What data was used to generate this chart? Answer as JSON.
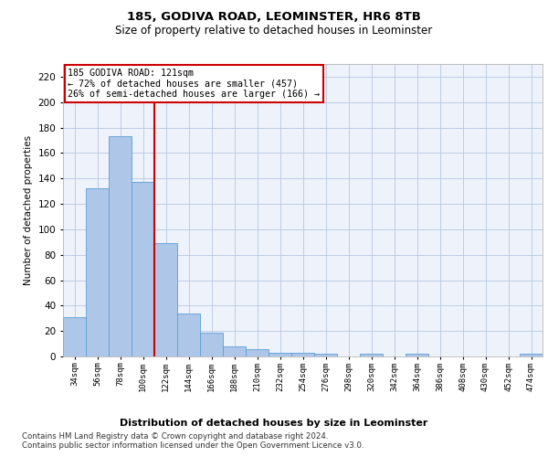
{
  "title1": "185, GODIVA ROAD, LEOMINSTER, HR6 8TB",
  "title2": "Size of property relative to detached houses in Leominster",
  "xlabel": "Distribution of detached houses by size in Leominster",
  "ylabel": "Number of detached properties",
  "categories": [
    "34sqm",
    "56sqm",
    "78sqm",
    "100sqm",
    "122sqm",
    "144sqm",
    "166sqm",
    "188sqm",
    "210sqm",
    "232sqm",
    "254sqm",
    "276sqm",
    "298sqm",
    "320sqm",
    "342sqm",
    "364sqm",
    "386sqm",
    "408sqm",
    "430sqm",
    "452sqm",
    "474sqm"
  ],
  "values": [
    31,
    132,
    173,
    137,
    89,
    34,
    19,
    8,
    6,
    3,
    3,
    2,
    0,
    2,
    0,
    2,
    0,
    0,
    0,
    0,
    2
  ],
  "bar_color": "#aec6e8",
  "bar_edge_color": "#5a9fd4",
  "vline_color": "#cc0000",
  "vline_pos": 3.5,
  "annotation_box_text": "185 GODIVA ROAD: 121sqm\n← 72% of detached houses are smaller (457)\n26% of semi-detached houses are larger (166) →",
  "ylim": [
    0,
    230
  ],
  "yticks": [
    0,
    20,
    40,
    60,
    80,
    100,
    120,
    140,
    160,
    180,
    200,
    220
  ],
  "background_color": "#eef2fb",
  "grid_color": "#b8c8e0",
  "footer": "Contains HM Land Registry data © Crown copyright and database right 2024.\nContains public sector information licensed under the Open Government Licence v3.0."
}
